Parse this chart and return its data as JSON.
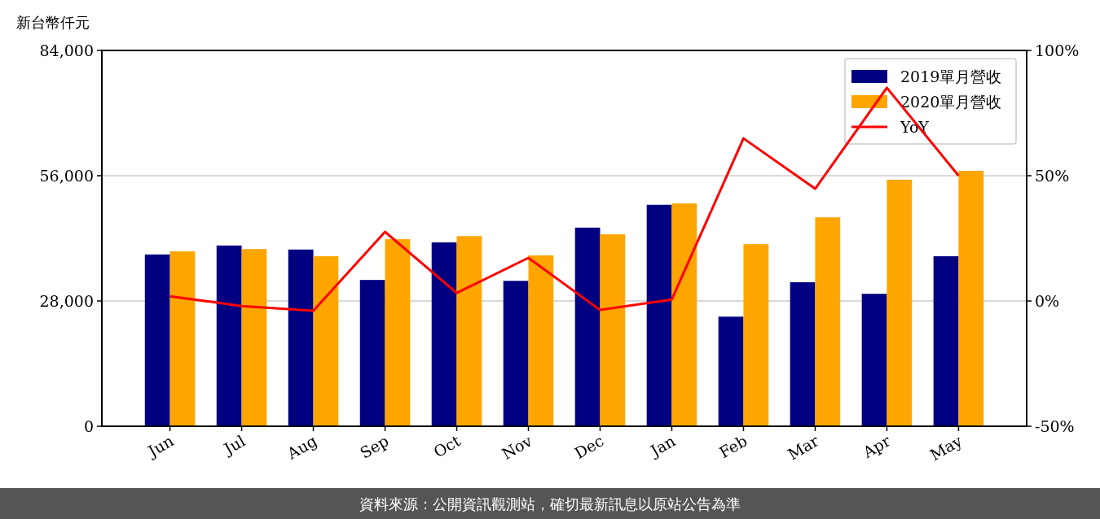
{
  "chart_data": {
    "type": "bar",
    "ylabel": "新台幣仟元",
    "categories": [
      "Jun",
      "Jul",
      "Aug",
      "Sep",
      "Oct",
      "Nov",
      "Dec",
      "Jan",
      "Feb",
      "Mar",
      "Apr",
      "May"
    ],
    "series": [
      {
        "name": "2019單月營收",
        "color": "#000080",
        "values": [
          38400,
          40400,
          39500,
          32700,
          41100,
          32500,
          44400,
          49500,
          24500,
          32200,
          29600,
          38000
        ]
      },
      {
        "name": "2020單月營收",
        "color": "#ffa500",
        "values": [
          39100,
          39600,
          38000,
          41800,
          42500,
          38200,
          42900,
          49800,
          40700,
          46700,
          55100,
          57100
        ]
      },
      {
        "name": "YoY",
        "type": "line",
        "axis": "y2",
        "color": "#ff0000",
        "values": [
          1.9,
          -2,
          -3.9,
          27.6,
          3.2,
          17.2,
          -3.6,
          0.6,
          64.9,
          44.8,
          85.1,
          50
        ]
      }
    ],
    "ylim": [
      0,
      84000
    ],
    "yticks": [
      {
        "value": 0,
        "label": "0"
      },
      {
        "value": 28000,
        "label": "28,000"
      },
      {
        "value": 56000,
        "label": "56,000"
      },
      {
        "value": 84000,
        "label": "84,000"
      }
    ],
    "y2lim": [
      -50,
      100
    ],
    "y2ticks": [
      {
        "value": -50,
        "label": "-50%"
      },
      {
        "value": 0,
        "label": "0%"
      },
      {
        "value": 50,
        "label": "50%"
      },
      {
        "value": 100,
        "label": "100%"
      }
    ],
    "grid": "y",
    "legend": "top right",
    "annotations": [
      "資料來源：公開資訊觀測站，確切最新訊息以原站公告為準"
    ]
  }
}
